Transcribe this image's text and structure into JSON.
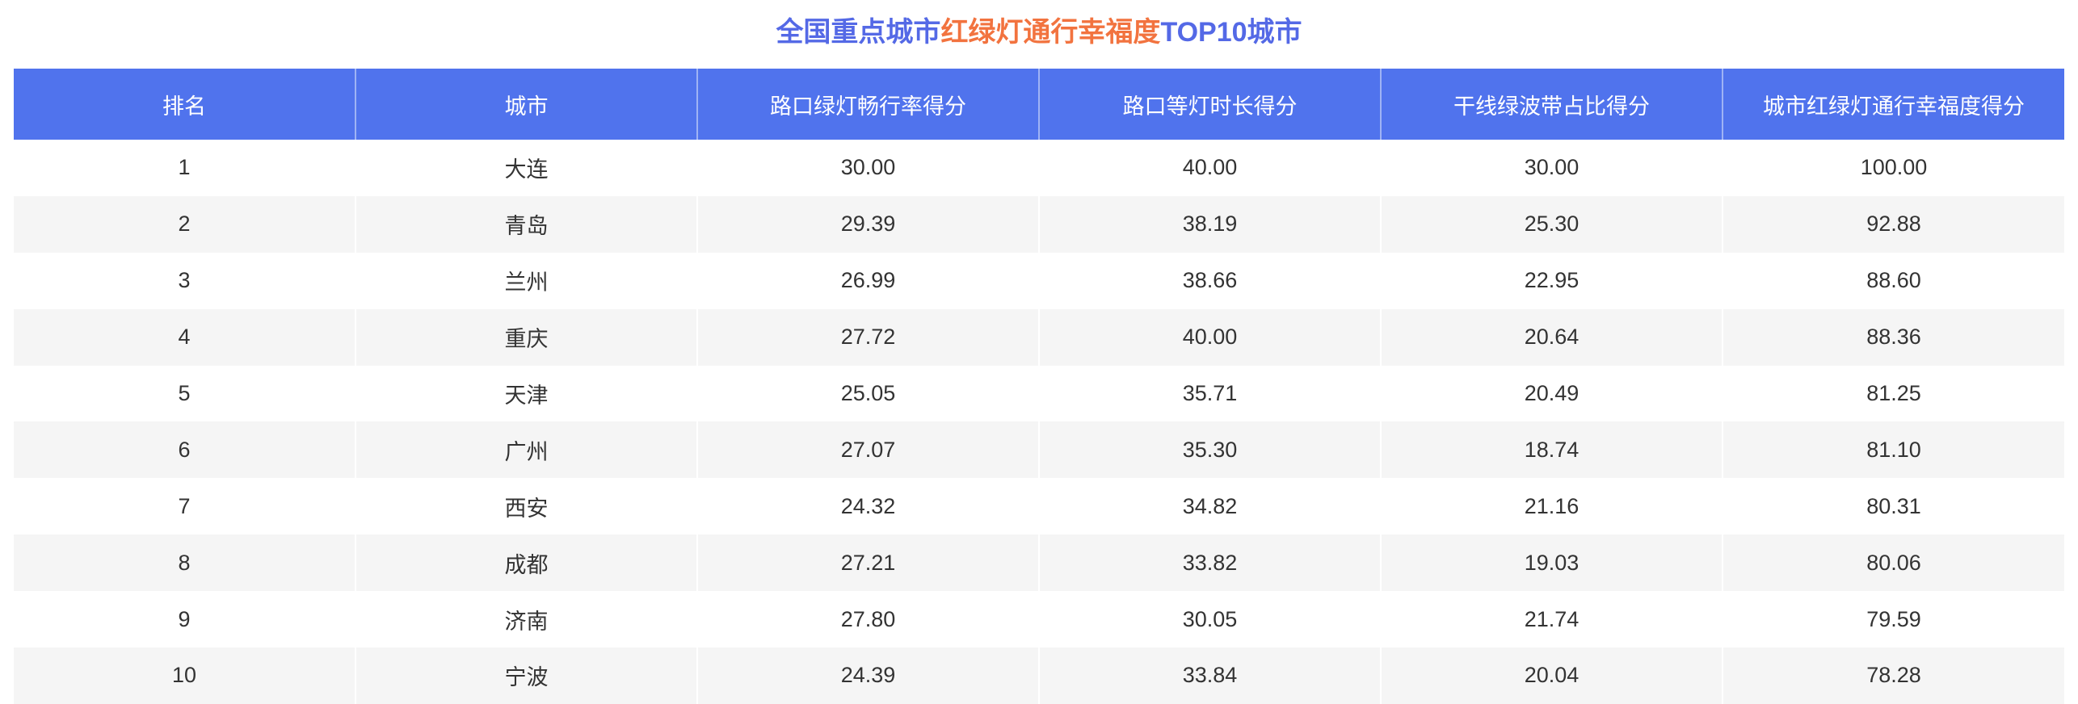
{
  "title": {
    "part1": "全国重点城市",
    "part2": "红绿灯通行幸福度",
    "part3": "TOP10城市"
  },
  "colors": {
    "header_bg": "#5073ed",
    "title_blue": "#5469e6",
    "title_orange": "#f2733f",
    "stripe": "#f5f5f5"
  },
  "table": {
    "headers": [
      "排名",
      "城市",
      "路口绿灯畅行率得分",
      "路口等灯时长得分",
      "干线绿波带占比得分",
      "城市红绿灯通行幸福度得分"
    ],
    "rows": [
      [
        "1",
        "大连",
        "30.00",
        "40.00",
        "30.00",
        "100.00"
      ],
      [
        "2",
        "青岛",
        "29.39",
        "38.19",
        "25.30",
        "92.88"
      ],
      [
        "3",
        "兰州",
        "26.99",
        "38.66",
        "22.95",
        "88.60"
      ],
      [
        "4",
        "重庆",
        "27.72",
        "40.00",
        "20.64",
        "88.36"
      ],
      [
        "5",
        "天津",
        "25.05",
        "35.71",
        "20.49",
        "81.25"
      ],
      [
        "6",
        "广州",
        "27.07",
        "35.30",
        "18.74",
        "81.10"
      ],
      [
        "7",
        "西安",
        "24.32",
        "34.82",
        "21.16",
        "80.31"
      ],
      [
        "8",
        "成都",
        "27.21",
        "33.82",
        "19.03",
        "80.06"
      ],
      [
        "9",
        "济南",
        "27.80",
        "30.05",
        "21.74",
        "79.59"
      ],
      [
        "10",
        "宁波",
        "24.39",
        "33.84",
        "20.04",
        "78.28"
      ]
    ]
  }
}
